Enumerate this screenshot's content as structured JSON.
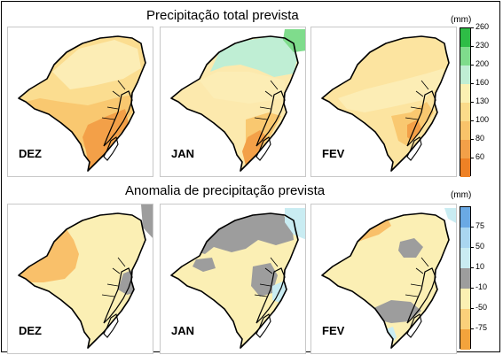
{
  "sections": [
    {
      "title": "Precipitação total prevista",
      "legend": {
        "unit": "(mm)",
        "colors": [
          "#2ebd46",
          "#7fdc8c",
          "#bfeed4",
          "#fbf0b2",
          "#fbdb8a",
          "#f9c36a",
          "#f3a048",
          "#ee8125"
        ],
        "ticks": [
          "260",
          "230",
          "200",
          "160",
          "130",
          "100",
          "80",
          "60"
        ]
      },
      "panels": [
        {
          "month": "DEZ"
        },
        {
          "month": "JAN"
        },
        {
          "month": "FEV"
        }
      ]
    },
    {
      "title": "Anomalia de precipitação prevista",
      "legend": {
        "unit": "(mm)",
        "colors": [
          "#6aa9e4",
          "#a9d6f0",
          "#c9ecf2",
          "#9d9d9d",
          "#fbf0b2",
          "#fbd07a",
          "#f3a33c"
        ],
        "ticks": [
          "75",
          "50",
          "10",
          "-10",
          "-50",
          "-75"
        ]
      },
      "panels": [
        {
          "month": "DEZ"
        },
        {
          "month": "JAN"
        },
        {
          "month": "FEV"
        }
      ]
    }
  ]
}
